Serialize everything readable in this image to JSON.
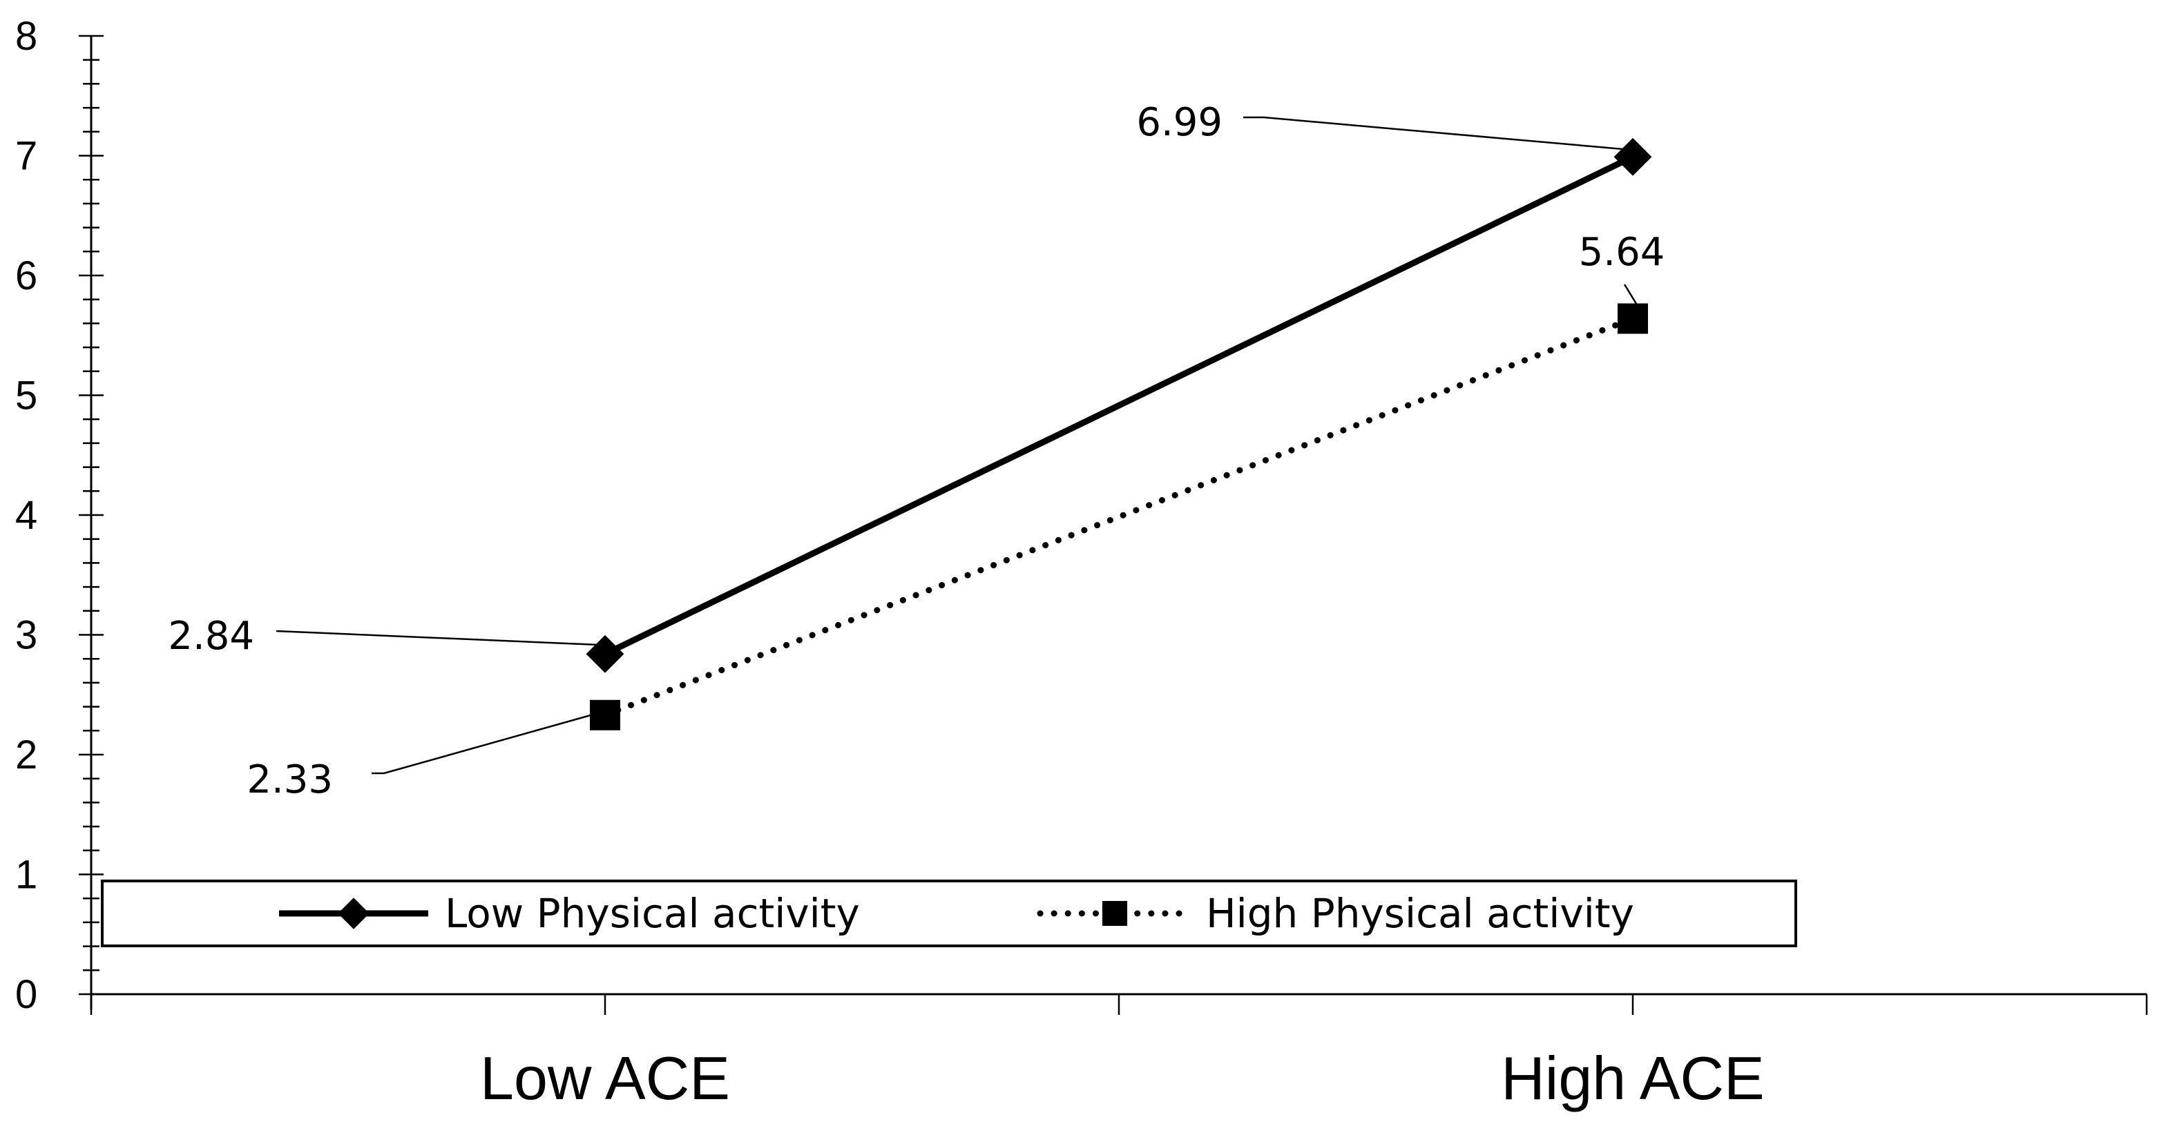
{
  "chart_data": {
    "type": "line",
    "title": "",
    "xlabel": "",
    "ylabel": "",
    "categories": [
      "Low ACE",
      "High ACE"
    ],
    "ylim": [
      0,
      8
    ],
    "yticks": [
      "0",
      "1",
      "2",
      "3",
      "4",
      "5",
      "6",
      "7",
      "8"
    ],
    "grid": false,
    "legend_position": "bottom",
    "series": [
      {
        "name": "Low Physical activity",
        "values": [
          2.84,
          6.99
        ],
        "labels": [
          "2.84",
          "6.99"
        ],
        "line_style": "solid",
        "marker": "diamond",
        "color": "#000000"
      },
      {
        "name": "High Physical activity",
        "values": [
          2.33,
          5.64
        ],
        "labels": [
          "2.33",
          "5.64"
        ],
        "line_style": "dotted",
        "marker": "square",
        "color": "#000000"
      }
    ]
  }
}
